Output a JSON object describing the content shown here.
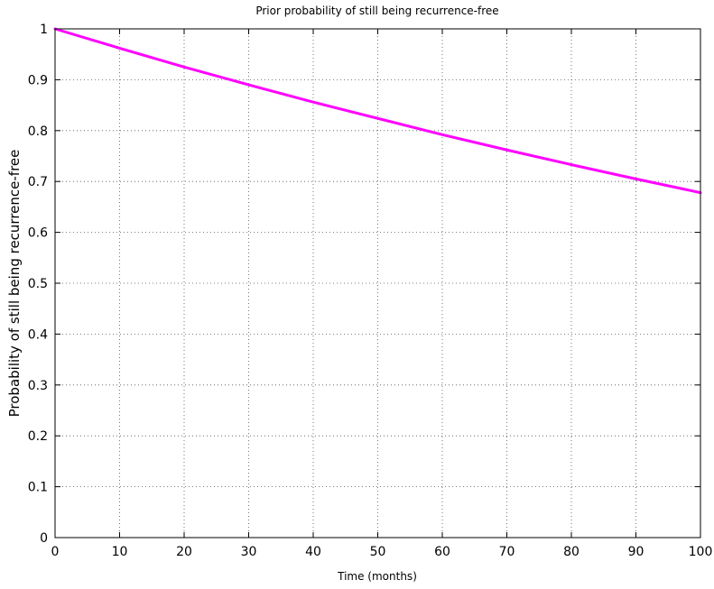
{
  "chart_data": {
    "type": "line",
    "title": "Prior probability of still being recurrence-free",
    "xlabel": "Time (months)",
    "ylabel": "Probability of still being recurrence-free",
    "xlim": [
      0,
      100
    ],
    "ylim": [
      0,
      1
    ],
    "xticks": [
      0,
      10,
      20,
      30,
      40,
      50,
      60,
      70,
      80,
      90,
      100
    ],
    "xtick_labels": [
      "0",
      "10",
      "20",
      "30",
      "40",
      "50",
      "60",
      "70",
      "80",
      "90",
      "100"
    ],
    "yticks": [
      0,
      0.1,
      0.2,
      0.3,
      0.4,
      0.5,
      0.6,
      0.7,
      0.8,
      0.9,
      1
    ],
    "ytick_labels": [
      "0",
      "0.1",
      "0.2",
      "0.3",
      "0.4",
      "0.5",
      "0.6",
      "0.7",
      "0.8",
      "0.9",
      "1"
    ],
    "grid": true,
    "series": [
      {
        "color": "#ff00ff",
        "x": [
          0,
          10,
          20,
          30,
          40,
          50,
          60,
          70,
          80,
          90,
          100
        ],
        "y": [
          1.0,
          0.962,
          0.925,
          0.89,
          0.856,
          0.824,
          0.792,
          0.762,
          0.733,
          0.705,
          0.678
        ]
      }
    ]
  }
}
